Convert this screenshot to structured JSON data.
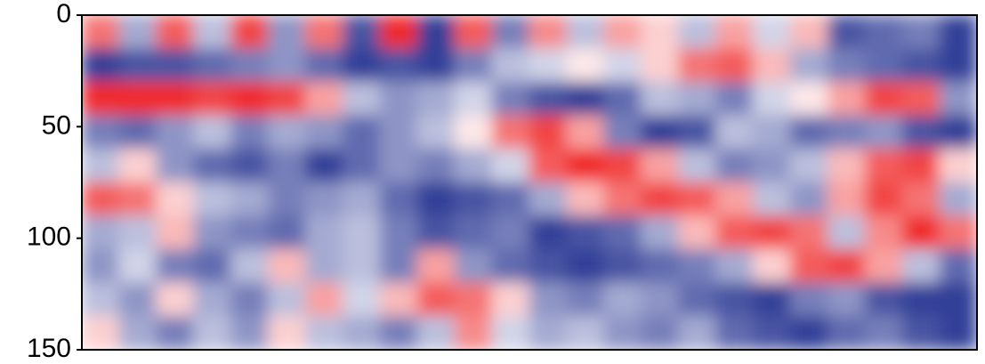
{
  "chart_data": {
    "type": "heatmap",
    "ylim": [
      0,
      150
    ],
    "yticks": [
      0,
      50,
      100,
      150
    ],
    "y_inverted": true,
    "clim": [
      -1,
      1
    ],
    "colormap": [
      "#1c2a8c",
      "#ffffff",
      "#ef1515"
    ],
    "values": [
      [
        0.6,
        -0.4,
        0.7,
        -0.3,
        0.8,
        -0.5,
        0.6,
        -0.8,
        0.9,
        -0.9,
        0.7,
        -0.6,
        0.5,
        -0.3,
        0.4,
        0.2,
        -0.3,
        0.4,
        -0.2,
        0.3,
        -0.8,
        -0.7,
        -0.6,
        -0.9
      ],
      [
        -0.9,
        -0.8,
        -0.8,
        -0.7,
        -0.6,
        -0.5,
        -0.7,
        -0.9,
        -0.8,
        -0.9,
        -0.6,
        -0.3,
        -0.2,
        0.1,
        -0.2,
        0.2,
        0.6,
        0.7,
        0.3,
        -0.4,
        -0.6,
        -0.7,
        -0.8,
        -0.9
      ],
      [
        0.9,
        0.9,
        0.9,
        0.8,
        0.9,
        0.8,
        0.4,
        -0.3,
        -0.5,
        -0.4,
        -0.2,
        -0.6,
        -0.8,
        -0.9,
        -0.7,
        -0.3,
        -0.4,
        -0.6,
        -0.2,
        0.1,
        0.4,
        0.8,
        0.7,
        -0.5
      ],
      [
        -0.6,
        -0.7,
        -0.5,
        -0.3,
        -0.6,
        -0.4,
        -0.5,
        -0.7,
        -0.5,
        -0.3,
        0.1,
        0.6,
        0.8,
        0.4,
        -0.6,
        -0.9,
        -0.8,
        -0.3,
        -0.4,
        -0.7,
        -0.6,
        -0.5,
        -0.8,
        -0.9
      ],
      [
        -0.3,
        0.2,
        -0.5,
        -0.7,
        -0.8,
        -0.6,
        -0.9,
        -0.7,
        -0.5,
        -0.6,
        -0.4,
        -0.2,
        0.7,
        0.9,
        0.8,
        0.4,
        -0.3,
        -0.6,
        -0.5,
        -0.3,
        0.3,
        0.7,
        0.8,
        0.2
      ],
      [
        0.7,
        0.6,
        0.2,
        -0.3,
        -0.4,
        -0.6,
        -0.5,
        -0.4,
        -0.7,
        -0.9,
        -0.8,
        -0.7,
        -0.4,
        0.3,
        0.6,
        0.8,
        0.7,
        0.4,
        -0.3,
        -0.5,
        0.4,
        0.8,
        0.6,
        -0.4
      ],
      [
        -0.4,
        -0.3,
        0.3,
        -0.5,
        -0.6,
        -0.7,
        -0.4,
        -0.3,
        -0.6,
        -0.8,
        -0.7,
        -0.6,
        -0.9,
        -0.8,
        -0.7,
        -0.4,
        0.3,
        0.7,
        0.8,
        0.6,
        -0.3,
        0.5,
        0.9,
        0.6
      ],
      [
        -0.5,
        -0.2,
        -0.6,
        -0.7,
        -0.3,
        0.3,
        -0.4,
        -0.3,
        -0.6,
        0.4,
        -0.5,
        -0.7,
        -0.8,
        -0.9,
        -0.8,
        -0.7,
        -0.6,
        -0.4,
        0.2,
        0.7,
        0.8,
        0.4,
        -0.3,
        -0.7
      ],
      [
        -0.3,
        -0.5,
        0.2,
        -0.4,
        -0.6,
        -0.3,
        0.4,
        -0.2,
        0.3,
        0.7,
        0.6,
        0.2,
        -0.5,
        -0.6,
        -0.4,
        -0.5,
        -0.7,
        -0.8,
        -0.9,
        -0.6,
        -0.5,
        -0.8,
        -0.9,
        -0.9
      ],
      [
        0.2,
        -0.4,
        -0.6,
        -0.3,
        -0.5,
        0.2,
        -0.3,
        -0.4,
        -0.6,
        -0.3,
        0.5,
        -0.2,
        -0.4,
        -0.3,
        -0.5,
        -0.6,
        -0.4,
        -0.7,
        -0.8,
        -0.9,
        -0.7,
        -0.6,
        -0.8,
        -0.9
      ]
    ]
  }
}
